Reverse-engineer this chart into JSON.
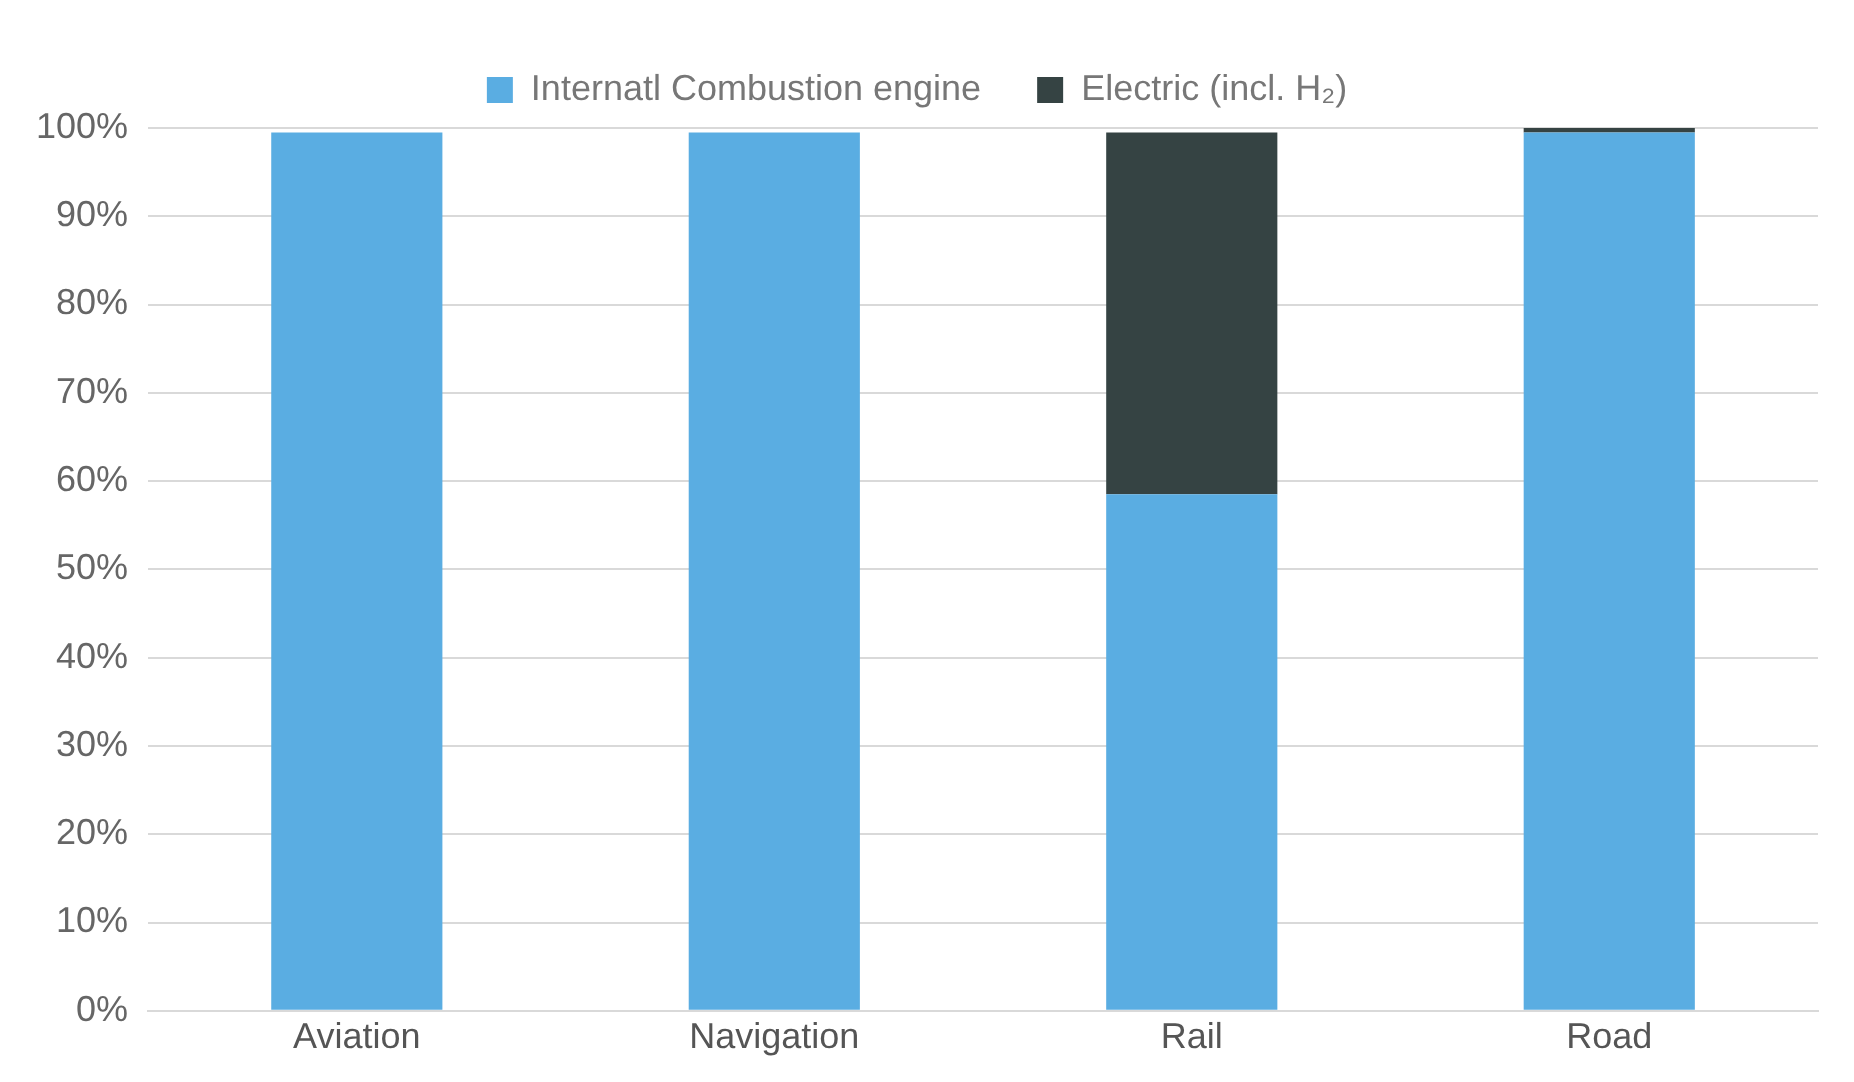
{
  "chart_data": {
    "type": "bar",
    "stacked": true,
    "categories": [
      "Aviation",
      "Navigation",
      "Rail",
      "Road"
    ],
    "series": [
      {
        "name": "Internatl Combustion engine",
        "color": "#5aade2",
        "values": [
          99.5,
          99.5,
          58.5,
          99.5
        ]
      },
      {
        "name": "Electric (incl. H₂)",
        "color": "#354343",
        "values": [
          0,
          0,
          41,
          0.6
        ]
      }
    ],
    "ylim": [
      0,
      100
    ],
    "yticks": [
      {
        "value": 0,
        "label": "0%"
      },
      {
        "value": 10,
        "label": "10%"
      },
      {
        "value": 20,
        "label": "20%"
      },
      {
        "value": 30,
        "label": "30%"
      },
      {
        "value": 40,
        "label": "40%"
      },
      {
        "value": 50,
        "label": "50%"
      },
      {
        "value": 60,
        "label": "60%"
      },
      {
        "value": 70,
        "label": "70%"
      },
      {
        "value": 80,
        "label": "80%"
      },
      {
        "value": 90,
        "label": "90%"
      },
      {
        "value": 100,
        "label": "100%"
      }
    ],
    "grid": "y",
    "legend": "top"
  }
}
